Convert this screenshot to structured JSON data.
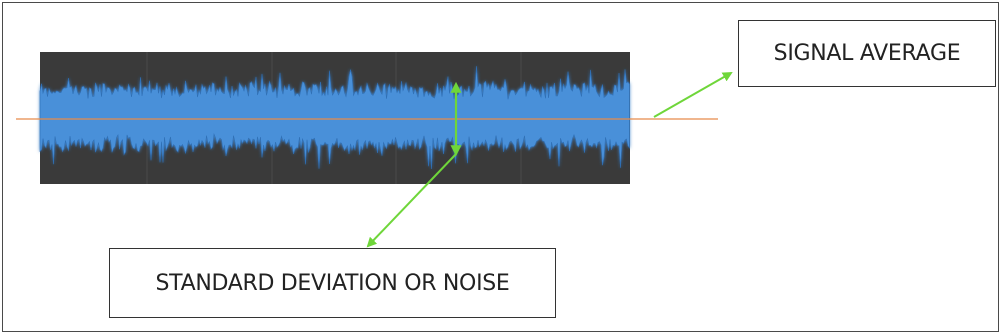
{
  "labels": {
    "signal_average": "SIGNAL AVERAGE",
    "standard_deviation": "STANDARD DEVIATION OR NOISE"
  },
  "colors": {
    "waveform_background": "#3a3a3a",
    "waveform_grid": "#4a4a4a",
    "signal": "#4a90d9",
    "signal_glow": "#2f6fb5",
    "average_line": "#e88b4a",
    "arrow": "#6fd63a",
    "box_border": "#333333",
    "frame_border": "#4a4a4a"
  },
  "icons": {
    "arrow_head": "arrowhead-icon"
  }
}
